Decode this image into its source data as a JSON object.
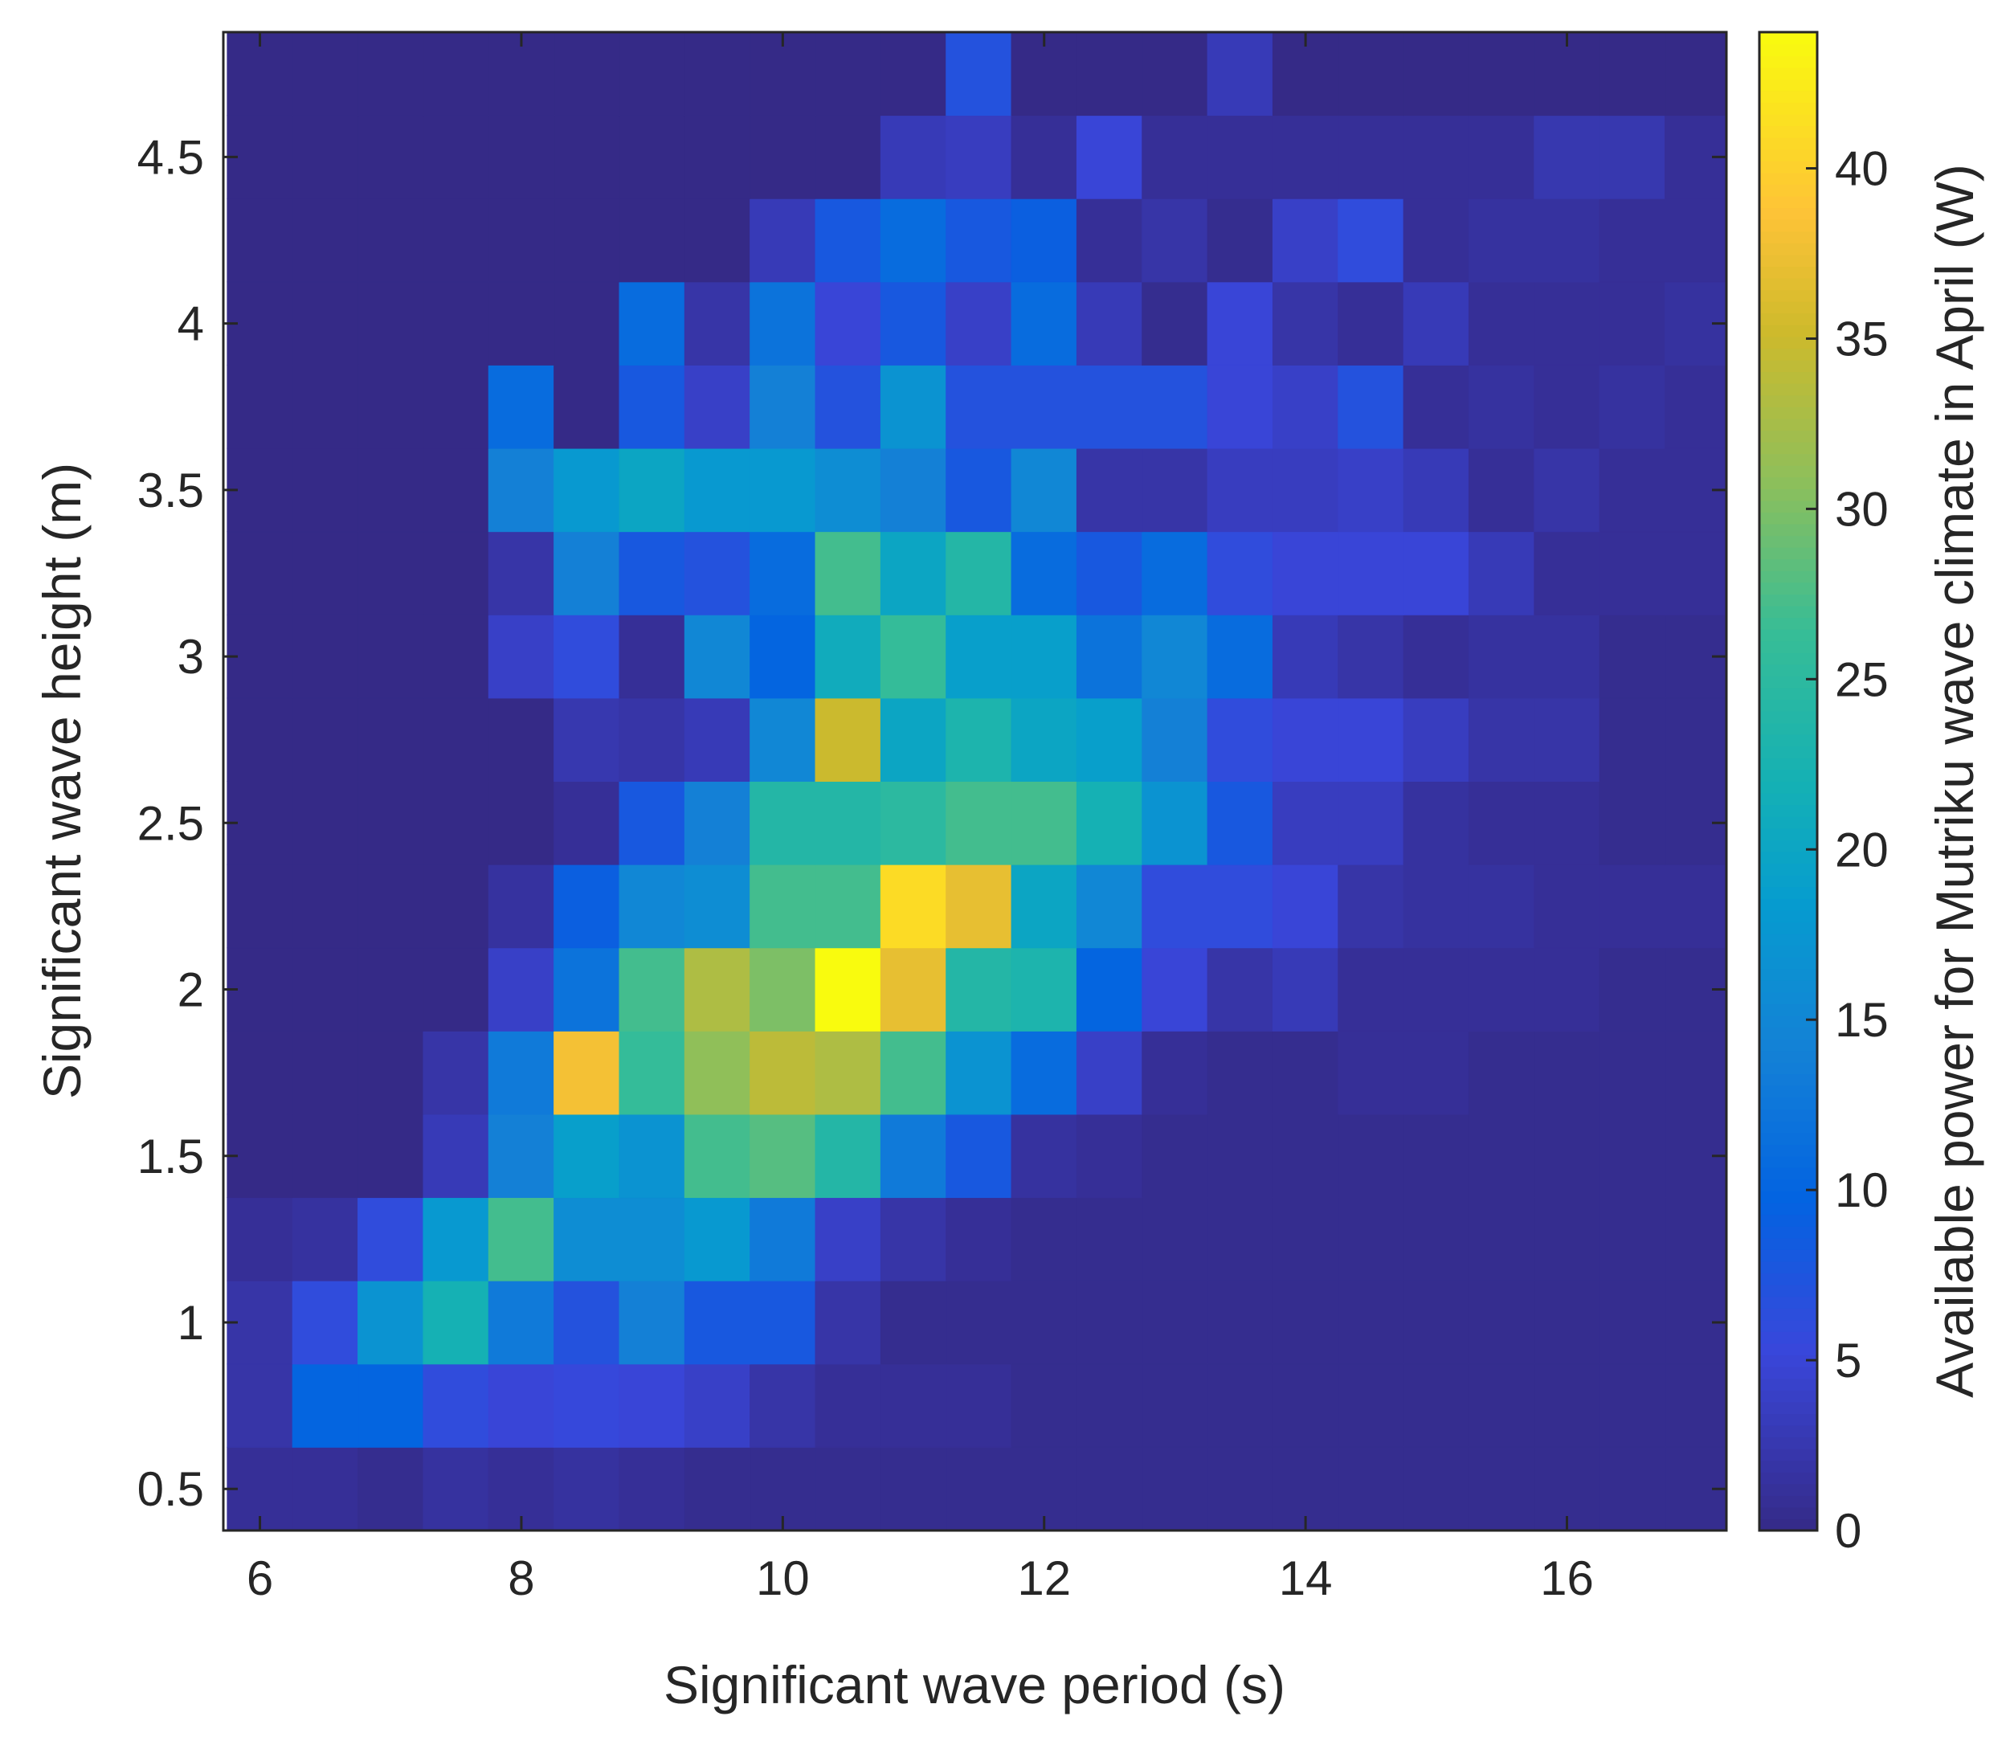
{
  "chart_data": {
    "type": "heatmap",
    "title": "",
    "xlabel": "Significant wave period (s)",
    "ylabel": "Significant wave height (m)",
    "colorbar_label": "Available power for Mutriku wave climate in April (W)",
    "x_ticks": [
      "6",
      "8",
      "10",
      "12",
      "14",
      "16"
    ],
    "y_ticks": [
      "0.5",
      "1",
      "1.5",
      "2",
      "2.5",
      "3",
      "3.5",
      "4",
      "4.5"
    ],
    "colorbar_ticks": [
      "0",
      "5",
      "10",
      "15",
      "20",
      "25",
      "30",
      "35",
      "40"
    ],
    "xlim": [
      5.72,
      17.22
    ],
    "ylim": [
      0.375,
      4.875
    ],
    "clim": [
      0,
      44
    ],
    "colormap": "parula",
    "grid": false,
    "x": [
      6.0,
      6.5,
      7.0,
      7.5,
      8.0,
      8.5,
      9.0,
      9.5,
      10.0,
      10.5,
      11.0,
      11.5,
      12.0,
      12.5,
      13.0,
      13.5,
      14.0,
      14.5,
      15.0,
      15.5,
      16.0,
      16.5,
      17.0
    ],
    "y": [
      0.5,
      0.75,
      1.0,
      1.25,
      1.5,
      1.75,
      2.0,
      2.25,
      2.5,
      2.75,
      3.0,
      3.25,
      3.5,
      3.75,
      4.0,
      4.25,
      4.5,
      4.75
    ],
    "z": [
      [
        1,
        1,
        0.5,
        1.5,
        1,
        1.5,
        1,
        0.5,
        0.5,
        0.5,
        0.5,
        0.5,
        0.5,
        0.5,
        0.5,
        0.5,
        0.5,
        0.5,
        0.5,
        0.5,
        0.5,
        0.5,
        0.5
      ],
      [
        2,
        10,
        10,
        6,
        5,
        5.5,
        5,
        4,
        2,
        1,
        1,
        1,
        0.5,
        0.5,
        0.5,
        0.5,
        0.5,
        0.5,
        0.5,
        0.5,
        0.5,
        0.5,
        0.5
      ],
      [
        2,
        6,
        17,
        22,
        13,
        7,
        14,
        8,
        8,
        2,
        0.5,
        0.5,
        0.5,
        0.5,
        0.5,
        0.5,
        0.5,
        0.5,
        0.5,
        0.5,
        0.5,
        0.5,
        0.5
      ],
      [
        1,
        1.5,
        6,
        18,
        27,
        16,
        16,
        18,
        13,
        4,
        2,
        1,
        0.5,
        0.5,
        0.5,
        0.5,
        0.5,
        0.5,
        0.5,
        0.5,
        0.5,
        0.5,
        0.5
      ],
      [
        0,
        0,
        0,
        3,
        14,
        19,
        17,
        27,
        28,
        24,
        13,
        8,
        1.5,
        1,
        0.5,
        0.5,
        0.5,
        0.5,
        0.5,
        0.5,
        0.5,
        0.5,
        0.5
      ],
      [
        0,
        0,
        0,
        2,
        13,
        38,
        26,
        31,
        34,
        33,
        27,
        17,
        11,
        4,
        1,
        0.5,
        0.5,
        1,
        1,
        0.5,
        0.5,
        0.5,
        0.5
      ],
      [
        0,
        0,
        0,
        0,
        4,
        12,
        27,
        33,
        30,
        44,
        37,
        24,
        23,
        10,
        5,
        2,
        3,
        1,
        1,
        1,
        1,
        0.5,
        0.5
      ],
      [
        0,
        0,
        0,
        0,
        1.5,
        9,
        15,
        16,
        27,
        27,
        41,
        37,
        20,
        15,
        6,
        6,
        5,
        2,
        1.5,
        1.5,
        1,
        1,
        1
      ],
      [
        0,
        0,
        0,
        0,
        0,
        1,
        8,
        14,
        24,
        24,
        25,
        27,
        27,
        22,
        17,
        8,
        3.5,
        3.5,
        1.5,
        1,
        1,
        0.5,
        0.5
      ],
      [
        0,
        0,
        0,
        0,
        0,
        2.5,
        2,
        3,
        15,
        35,
        20,
        23,
        20,
        19,
        14,
        6,
        5,
        5,
        3.5,
        2,
        2,
        0.5,
        0.5
      ],
      [
        0,
        0,
        0,
        0,
        4,
        6,
        1,
        15,
        10,
        21,
        26,
        19,
        19,
        12,
        15,
        11,
        3,
        2,
        1,
        1.5,
        1.5,
        0.5,
        0.5
      ],
      [
        0,
        0,
        0,
        0,
        2,
        14,
        8,
        7,
        11,
        27,
        20,
        24,
        11,
        8,
        11,
        6,
        5,
        5,
        5,
        3,
        1,
        1,
        1
      ],
      [
        0,
        0,
        0,
        0,
        14,
        18,
        20,
        18,
        18,
        16,
        14,
        8,
        15,
        2,
        2,
        3.5,
        3.5,
        4,
        3,
        1,
        2,
        1,
        1
      ],
      [
        0,
        0,
        0,
        0,
        11,
        0,
        8,
        4,
        14,
        7,
        17,
        7,
        7,
        7,
        7,
        5,
        4,
        7,
        1,
        1.5,
        1,
        1.5,
        1
      ],
      [
        0,
        0,
        0,
        0,
        0,
        0,
        11,
        2,
        12,
        5,
        8,
        4,
        11,
        3,
        0.5,
        5,
        2,
        1,
        3,
        1,
        1,
        1,
        1.5
      ],
      [
        0,
        0,
        0,
        0,
        0,
        0,
        0,
        0,
        3,
        8,
        11,
        8,
        9,
        1,
        2,
        0.5,
        4,
        6,
        1,
        1.5,
        1.5,
        1,
        1
      ],
      [
        0,
        0,
        0,
        0,
        0,
        0,
        0,
        0,
        0,
        0,
        3,
        3.5,
        1,
        5,
        1,
        1,
        1,
        1,
        1,
        1,
        2.5,
        2.5,
        1
      ],
      [
        0,
        0,
        0,
        0,
        0,
        0,
        0,
        0,
        0,
        0,
        0,
        7,
        0,
        0,
        0,
        3,
        0,
        0,
        0,
        0,
        0,
        0,
        0
      ]
    ]
  }
}
